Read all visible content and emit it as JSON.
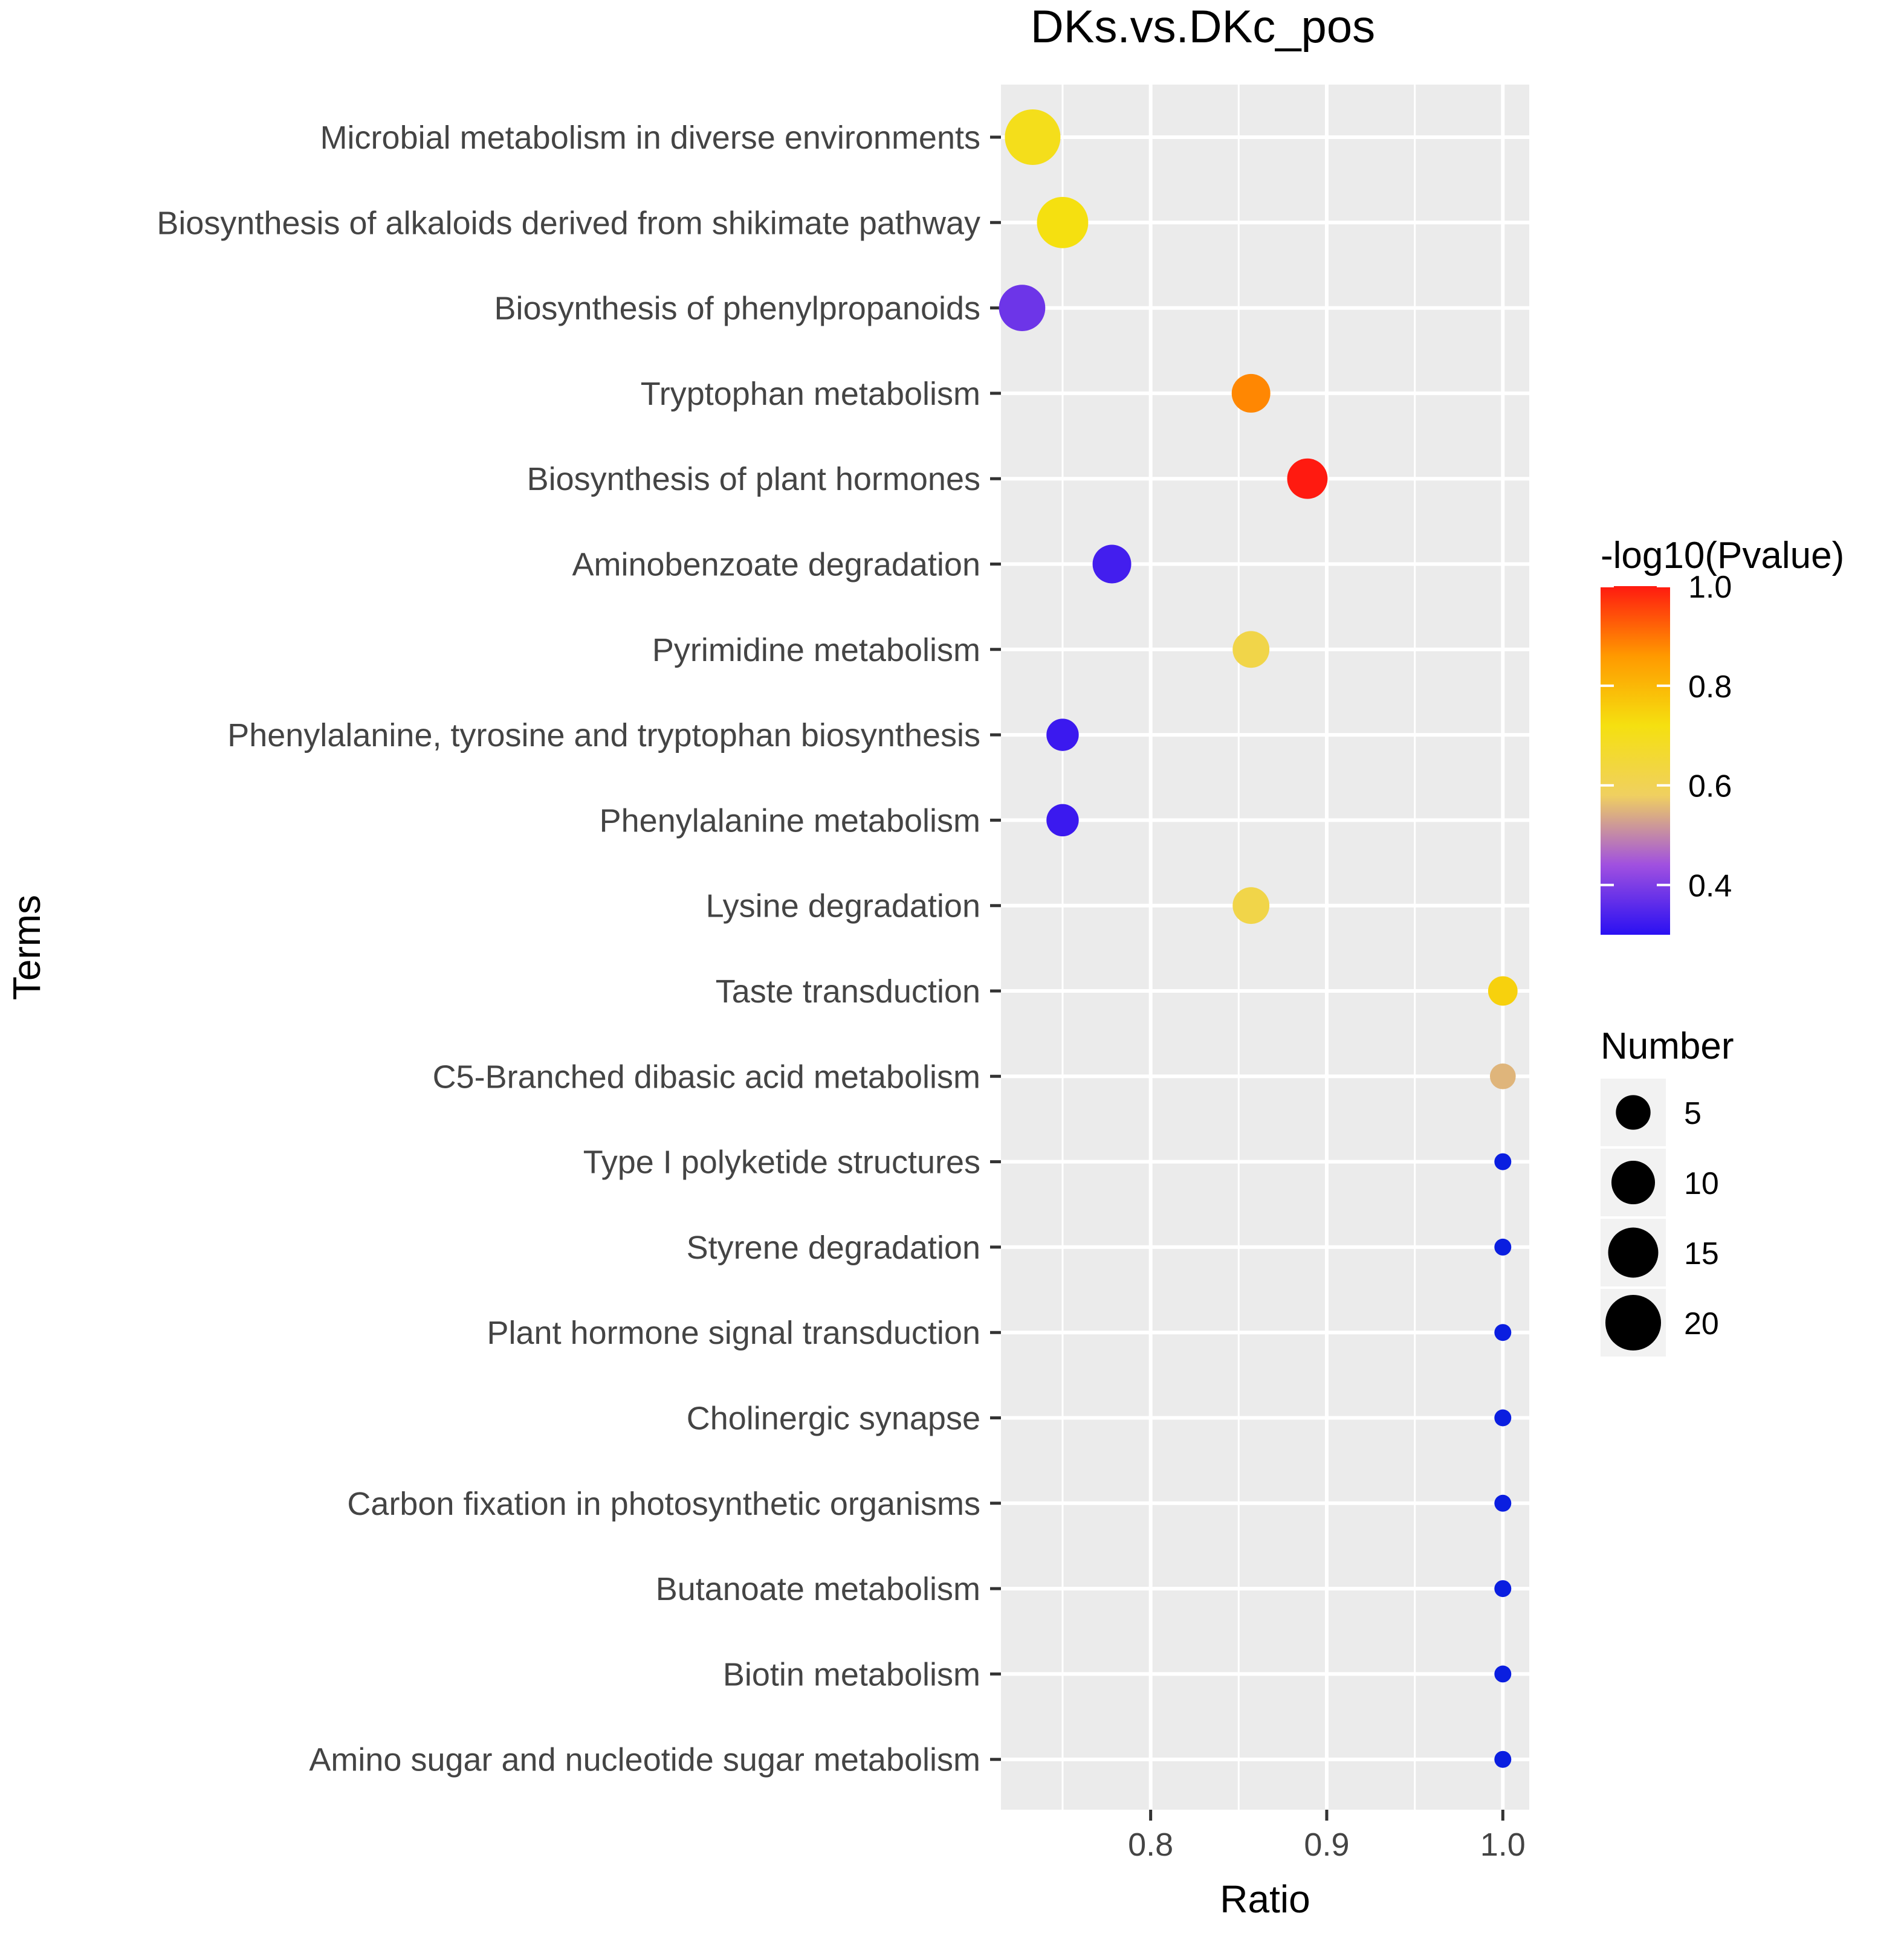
{
  "chart_data": {
    "type": "scatter",
    "title": "DKs.vs.DKc_pos",
    "xlabel": "Ratio",
    "ylabel": "Terms",
    "xlim": [
      0.715,
      1.015
    ],
    "xticks": [
      0.8,
      0.9,
      1.0
    ],
    "xtick_labels": [
      "0.8",
      "0.9",
      "1.0"
    ],
    "grid": true,
    "points": [
      {
        "term": "Microbial metabolism in diverse environments",
        "ratio": 0.733,
        "number": 20,
        "neglog10p": 0.7
      },
      {
        "term": "Biosynthesis of alkaloids derived from shikimate pathway",
        "ratio": 0.75,
        "number": 16,
        "neglog10p": 0.72
      },
      {
        "term": "Biosynthesis of phenylpropanoids",
        "ratio": 0.727,
        "number": 12,
        "neglog10p": 0.38
      },
      {
        "term": "Tryptophan metabolism",
        "ratio": 0.857,
        "number": 7,
        "neglog10p": 0.88
      },
      {
        "term": "Biosynthesis of plant hormones",
        "ratio": 0.889,
        "number": 8,
        "neglog10p": 1.0
      },
      {
        "term": "Aminobenzoate degradation",
        "ratio": 0.778,
        "number": 7,
        "neglog10p": 0.33
      },
      {
        "term": "Pyrimidine metabolism",
        "ratio": 0.857,
        "number": 6,
        "neglog10p": 0.62
      },
      {
        "term": "Phenylalanine, tyrosine and tryptophan biosynthesis",
        "ratio": 0.75,
        "number": 4,
        "neglog10p": 0.32
      },
      {
        "term": "Phenylalanine metabolism",
        "ratio": 0.75,
        "number": 4,
        "neglog10p": 0.32
      },
      {
        "term": "Lysine degradation",
        "ratio": 0.857,
        "number": 6,
        "neglog10p": 0.62
      },
      {
        "term": "Taste transduction",
        "ratio": 1.0,
        "number": 3,
        "neglog10p": 0.75
      },
      {
        "term": "C5-Branched dibasic acid metabolism",
        "ratio": 1.0,
        "number": 2,
        "neglog10p": 0.55
      },
      {
        "term": "Type I polyketide structures",
        "ratio": 1.0,
        "number": 1,
        "neglog10p": 0.2
      },
      {
        "term": "Styrene degradation",
        "ratio": 1.0,
        "number": 1,
        "neglog10p": 0.2
      },
      {
        "term": "Plant hormone signal transduction",
        "ratio": 1.0,
        "number": 1,
        "neglog10p": 0.2
      },
      {
        "term": "Cholinergic synapse",
        "ratio": 1.0,
        "number": 1,
        "neglog10p": 0.2
      },
      {
        "term": "Carbon fixation in photosynthetic organisms",
        "ratio": 1.0,
        "number": 1,
        "neglog10p": 0.2
      },
      {
        "term": "Butanoate metabolism",
        "ratio": 1.0,
        "number": 1,
        "neglog10p": 0.2
      },
      {
        "term": "Biotin metabolism",
        "ratio": 1.0,
        "number": 1,
        "neglog10p": 0.2
      },
      {
        "term": "Amino sugar and nucleotide sugar metabolism",
        "ratio": 1.0,
        "number": 1,
        "neglog10p": 0.2
      }
    ],
    "color_legend": {
      "title": "-log10(Pvalue)",
      "range": [
        0.3,
        1.0
      ],
      "ticks": [
        0.4,
        0.6,
        0.8,
        1.0
      ],
      "tick_labels": [
        "0.4",
        "0.6",
        "0.8",
        "1.0"
      ],
      "gradient_colors": [
        "#2a10f2",
        "#a050e0",
        "#f0d060",
        "#f5e010",
        "#ff9900",
        "#ff1a10"
      ]
    },
    "size_legend": {
      "title": "Number",
      "values": [
        5,
        10,
        15,
        20
      ],
      "labels": [
        "5",
        "10",
        "15",
        "20"
      ]
    },
    "low_value_color": "#0a1ee0",
    "panel_bg": "#ebebeb",
    "grid_color": "#ffffff"
  }
}
